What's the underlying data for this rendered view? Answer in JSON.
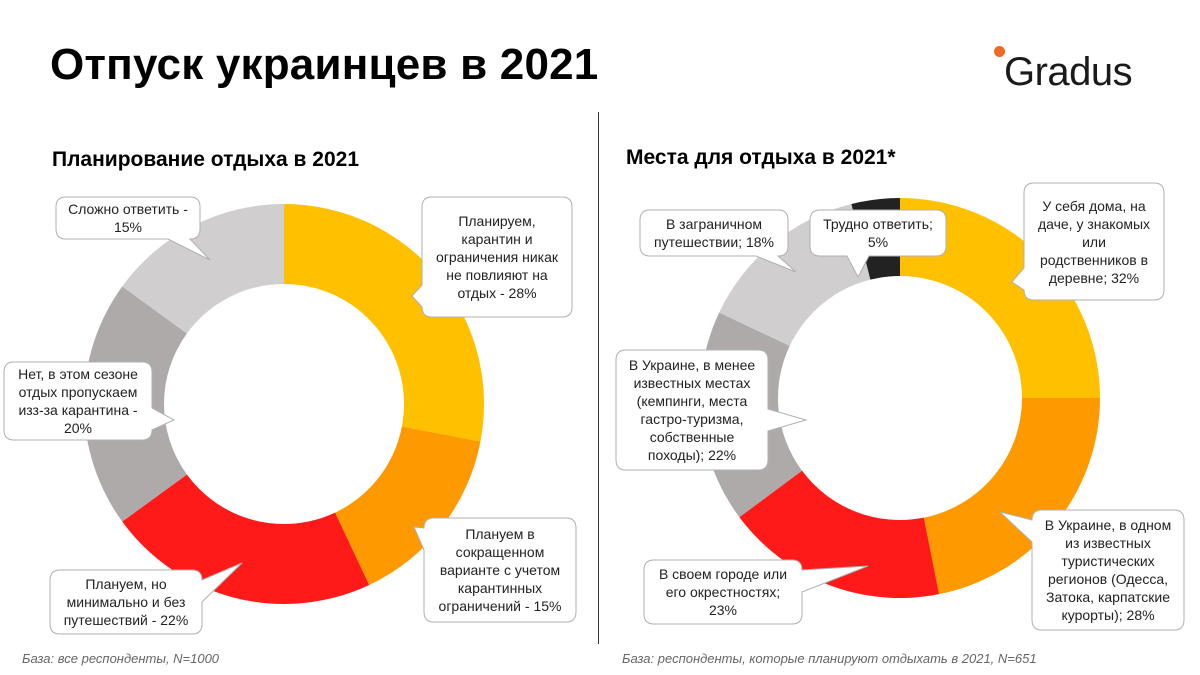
{
  "title": "Отпуск украинцев в 2021",
  "logo": {
    "text": "Gradus",
    "accent": "#f26a21"
  },
  "chart_data": [
    {
      "type": "pie",
      "title": "Планирование отдыха в 2021",
      "categories": [
        "Планируем, карантин и ограничения никак не повлияют на отдых",
        "Плануем в сокращенном варианте с учетом карантинных ограничений",
        "Плануем, но минимально и без путешествий",
        "Нет, в этом сезоне отдых пропускаем изз-за карантина",
        "Сложно ответить"
      ],
      "values": [
        28,
        15,
        22,
        20,
        15
      ],
      "colors": [
        "#ffc000",
        "#ff9900",
        "#ff1a1a",
        "#aeaaaa",
        "#d0cece"
      ],
      "labels": [
        "Планируем,\nкарантин и\nограничения никак\nне повлияют на\nотдых - 28%",
        "Плануем в\nсокращенном\nварианте с учетом\nкарантинных\nограничений  - 15%",
        "Плануем,  но\nминимально  и без\nпутешествий  - 22%",
        "Нет,  в этом сезоне\nотдых пропускаем\nизз-за карантина  -\n20%",
        "Сложно  ответить -\n15%"
      ],
      "footnote": "База: все респонденты, N=1000"
    },
    {
      "type": "pie",
      "title": "Места для отдыха в 2021*",
      "categories": [
        "У себя дома, на даче, у знакомых или родственников в деревне",
        "В Украине, в одном из известных туристических регионов (Одесса, Затока, карпатские курорты)",
        "В своем городе или его окрестностях",
        "В Украине, в менее известных местах (кемпинги, места гастро-туризма, собственные походы)",
        "В заграничном путешествии",
        "Трудно ответить"
      ],
      "values": [
        32,
        28,
        23,
        22,
        18,
        5
      ],
      "colors": [
        "#ffc000",
        "#ff9900",
        "#ff1a1a",
        "#aeaaaa",
        "#d0cece",
        "#222222"
      ],
      "labels": [
        "У себя дома, на\nдаче, у знакомых\nили\nродственников в\nдеревне; 32%",
        "В Украине, в одном\nиз известных\nтуристических\nрегионов (Одесса,\nЗатока, карпатские\nкурорты); 28%",
        "В своем городе или\nего окрестностях;\n23%",
        "В Украине, в менее\nизвестных местах\n(кемпинги,  места\nгастро-туризма,\nсобственные\nпоходы); 22%",
        "В заграничном\nпутешествии;  18%",
        "Трудно  ответить;\n5%"
      ],
      "footnote": "База: респонденты, которые планируют  отдыхать в 2021, N=651"
    }
  ]
}
